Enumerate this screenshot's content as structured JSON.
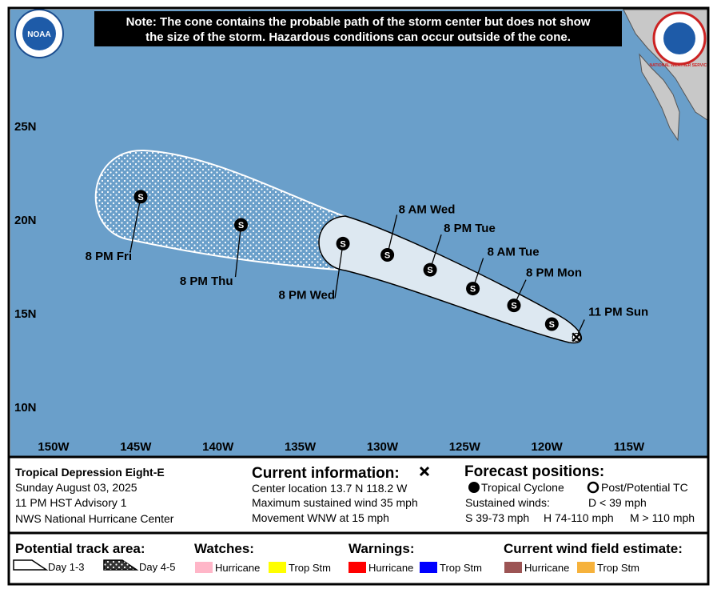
{
  "note": [
    "Note: The cone contains the probable path of the storm center but does not show",
    "the size of the storm. Hazardous conditions can occur outside of the cone."
  ],
  "logos": {
    "noaa": "NOAA",
    "nws": "NATIONAL WEATHER SERVICE"
  },
  "map": {
    "lat_ticks": [
      {
        "value": 25,
        "label": "25N"
      },
      {
        "value": 20,
        "label": "20N"
      },
      {
        "value": 15,
        "label": "15N"
      },
      {
        "value": 10,
        "label": "10N"
      }
    ],
    "lon_ticks": [
      {
        "value": -150,
        "label": "150W"
      },
      {
        "value": -145,
        "label": "145W"
      },
      {
        "value": -140,
        "label": "140W"
      },
      {
        "value": -135,
        "label": "135W"
      },
      {
        "value": -130,
        "label": "130W"
      },
      {
        "value": -125,
        "label": "125W"
      },
      {
        "value": -120,
        "label": "120W"
      },
      {
        "value": -115,
        "label": "115W"
      }
    ],
    "marker_letter": "S",
    "track": [
      {
        "label": "11 PM Sun",
        "lat": 13.7,
        "lon": -118.2
      },
      {
        "label": null,
        "lat": 14.4,
        "lon": -119.7
      },
      {
        "label": "8 PM Mon",
        "lat": 15.4,
        "lon": -122.0
      },
      {
        "label": "8 AM Tue",
        "lat": 16.3,
        "lon": -124.5
      },
      {
        "label": "8 PM Tue",
        "lat": 17.3,
        "lon": -127.1
      },
      {
        "label": "8 AM Wed",
        "lat": 18.1,
        "lon": -129.7
      },
      {
        "label": "8 PM Wed",
        "lat": 18.7,
        "lon": -132.4
      },
      {
        "label": "8 PM Thu",
        "lat": 19.7,
        "lon": -138.6
      },
      {
        "label": "8 PM Fri",
        "lat": 21.2,
        "lon": -144.7
      }
    ]
  },
  "storm": {
    "name": "Tropical Depression Eight-E",
    "date": "Sunday August 03, 2025",
    "advisory": "11 PM HST Advisory 1",
    "center": "NWS National Hurricane Center"
  },
  "current": {
    "title": "Current information:",
    "lines": [
      "Center location 13.7 N 118.2 W",
      "Maximum sustained wind 35 mph",
      "Movement WNW at 15 mph"
    ]
  },
  "forecast": {
    "title": "Forecast positions:",
    "tropical": "Tropical Cyclone",
    "post": "Post/Potential TC",
    "winds": "Sustained winds:",
    "d": "D < 39 mph",
    "s": "S 39-73 mph",
    "h": "H 74-110 mph",
    "m": "M > 110 mph"
  },
  "legend": {
    "track_title": "Potential track area:",
    "day13": "Day 1-3",
    "day45": "Day 4-5",
    "groups": [
      {
        "title": "Watches:",
        "items": [
          {
            "label": "Hurricane",
            "color": "#ffb6c8"
          },
          {
            "label": "Trop Stm",
            "color": "#ffff00"
          }
        ]
      },
      {
        "title": "Warnings:",
        "items": [
          {
            "label": "Hurricane",
            "color": "#ff0000"
          },
          {
            "label": "Trop Stm",
            "color": "#0000ff"
          }
        ]
      },
      {
        "title": "Current wind field estimate:",
        "items": [
          {
            "label": "Hurricane",
            "color": "#9c5454"
          },
          {
            "label": "Trop Stm",
            "color": "#f6b23c"
          }
        ]
      }
    ]
  }
}
